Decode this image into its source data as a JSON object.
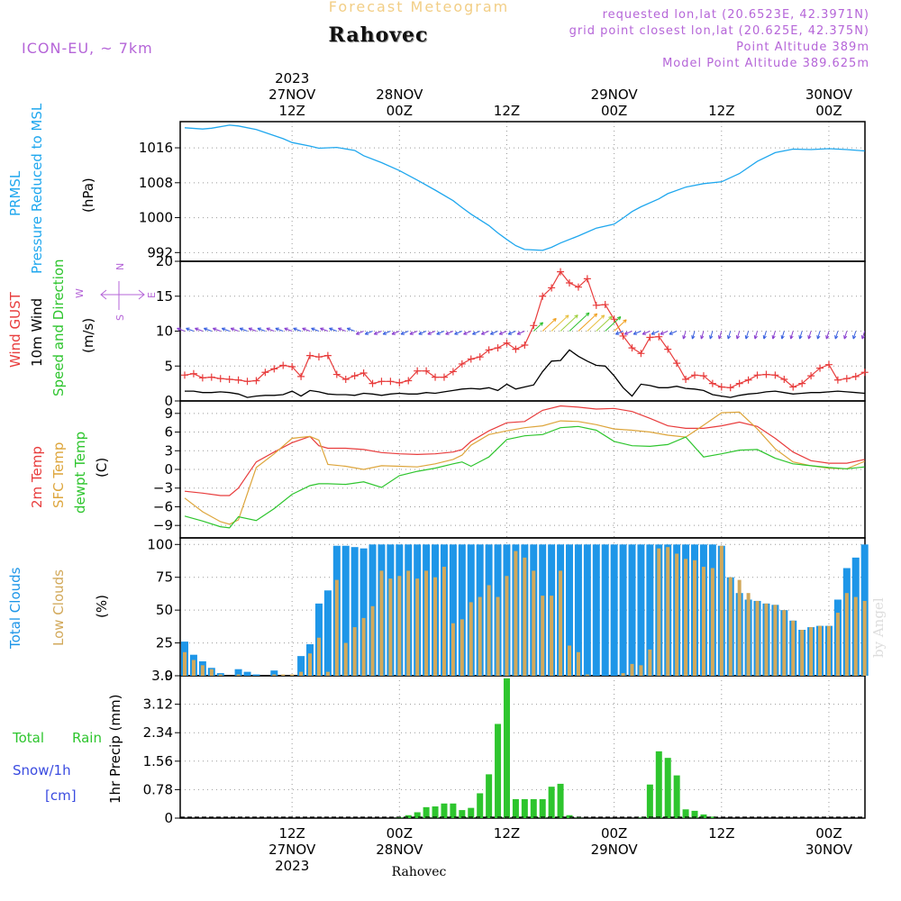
{
  "header": {
    "forecast_title": "Forecast Meteogram",
    "location_title": "Rahovec",
    "model": "ICON-EU, ~ 7km",
    "requested": "requested lon,lat (20.6523E, 42.3971N)",
    "grid_point": "grid point closest lon,lat (20.625E, 42.375N)",
    "point_altitude": "Point Altitude 389m",
    "model_altitude": "Model Point Altitude 389.625m",
    "bottom_label": "Rahovec",
    "credit": "by Angel"
  },
  "colors": {
    "pressure": "#1fa7ee",
    "gust": "#e83c3c",
    "wind": "#000000",
    "temp": "#e83c3c",
    "sfc_temp": "#dda53b",
    "dewpt": "#2ec52e",
    "total_clouds": "#1e96e8",
    "low_clouds": "#d2a95b",
    "rain": "#2ec52e",
    "snow_label": "#3a4be0",
    "compass": "#b565d8"
  },
  "time_axis": {
    "top_year": "2023",
    "ticks": [
      {
        "t": 12,
        "date": "27NOV",
        "hour": "12Z"
      },
      {
        "t": 24,
        "date": "28NOV",
        "hour": "00Z"
      },
      {
        "t": 36,
        "date": "",
        "hour": "12Z"
      },
      {
        "t": 48,
        "date": "29NOV",
        "hour": "00Z"
      },
      {
        "t": 60,
        "date": "",
        "hour": "12Z"
      },
      {
        "t": 72,
        "date": "30NOV",
        "hour": "00Z"
      }
    ],
    "bottom_year": "2023"
  },
  "chart_data": [
    {
      "type": "line",
      "title": "PRMSL Pressure Reduced to MSL",
      "ylabel": "(hPa)",
      "ylim": [
        990,
        1022
      ],
      "yticks": [
        992,
        1000,
        1008,
        1016
      ],
      "x": [
        0,
        2,
        3,
        5,
        6,
        8,
        11,
        12,
        14,
        15,
        17,
        19,
        20,
        22,
        24,
        26,
        28,
        30,
        31,
        32,
        34,
        35,
        36,
        37,
        38,
        40,
        41,
        42,
        44,
        46,
        48,
        49,
        50,
        51,
        53,
        54,
        56,
        58,
        60,
        62,
        64,
        66,
        68,
        70,
        72,
        74,
        76
      ],
      "series": [
        {
          "name": "PRMSL",
          "values": [
            1020.6,
            1020.3,
            1020.5,
            1021.2,
            1021.0,
            1020.2,
            1018.1,
            1017.2,
            1016.4,
            1015.9,
            1016.1,
            1015.4,
            1014.2,
            1012.6,
            1010.8,
            1008.6,
            1006.3,
            1003.9,
            1002.3,
            1000.8,
            998.2,
            996.5,
            995.0,
            993.6,
            992.7,
            992.5,
            993.2,
            994.2,
            995.8,
            997.6,
            998.5,
            999.9,
            1001.4,
            1002.5,
            1004.3,
            1005.5,
            1007.0,
            1007.8,
            1008.2,
            1010.1,
            1012.9,
            1014.9,
            1015.7,
            1015.6,
            1015.8,
            1015.6,
            1015.3
          ]
        }
      ]
    },
    {
      "type": "line",
      "title": "Wind GUST / 10m Wind Speed and Direction",
      "ylabel": "(m/s)",
      "ylim": [
        0,
        20
      ],
      "yticks": [
        0,
        5,
        10,
        15,
        20
      ],
      "compass": {
        "n": "N",
        "s": "S",
        "w": "W",
        "e": "E"
      },
      "x": [
        0,
        1,
        2,
        3,
        4,
        5,
        6,
        7,
        8,
        9,
        10,
        11,
        12,
        13,
        14,
        15,
        16,
        17,
        18,
        19,
        20,
        21,
        22,
        23,
        24,
        25,
        26,
        27,
        28,
        29,
        30,
        31,
        32,
        33,
        34,
        35,
        36,
        37,
        38,
        39,
        40,
        41,
        42,
        43,
        44,
        45,
        46,
        47,
        48,
        49,
        50,
        51,
        52,
        53,
        54,
        55,
        56,
        57,
        58,
        59,
        60,
        61,
        62,
        63,
        64,
        65,
        66,
        67,
        68,
        69,
        70,
        71,
        72,
        73,
        74,
        75,
        76
      ],
      "series": [
        {
          "name": "Wind GUST",
          "values": [
            3.7,
            3.9,
            3.3,
            3.4,
            3.2,
            3.1,
            3.0,
            2.8,
            2.9,
            4.1,
            4.6,
            5.1,
            4.9,
            3.5,
            6.5,
            6.3,
            6.5,
            3.8,
            3.1,
            3.6,
            4.0,
            2.5,
            2.8,
            2.8,
            2.6,
            2.9,
            4.3,
            4.3,
            3.4,
            3.4,
            4.2,
            5.3,
            6.0,
            6.3,
            7.3,
            7.6,
            8.3,
            7.4,
            8.0,
            10.8,
            15.0,
            16.2,
            18.5,
            16.9,
            16.3,
            17.5,
            13.7,
            13.8,
            11.7,
            9.3,
            7.6,
            6.8,
            9.1,
            9.2,
            7.4,
            5.4,
            3.1,
            3.7,
            3.6,
            2.5,
            2.0,
            1.9,
            2.5,
            3.0,
            3.7,
            3.8,
            3.7,
            3.1,
            2.0,
            2.5,
            3.6,
            4.7,
            5.2,
            3.0,
            3.2,
            3.5,
            4.1
          ]
        },
        {
          "name": "10m Wind",
          "values": [
            1.4,
            1.4,
            1.2,
            1.2,
            1.3,
            1.2,
            1.0,
            0.5,
            0.7,
            0.8,
            0.8,
            0.9,
            1.4,
            0.7,
            1.5,
            1.3,
            1.0,
            0.9,
            0.9,
            0.8,
            1.1,
            1.0,
            0.8,
            1.0,
            1.1,
            1.0,
            1.0,
            1.2,
            1.1,
            1.3,
            1.5,
            1.7,
            1.8,
            1.7,
            1.9,
            1.5,
            2.4,
            1.7,
            2.0,
            2.3,
            4.2,
            5.7,
            5.8,
            7.3,
            6.4,
            5.7,
            5.1,
            5.0,
            3.6,
            1.9,
            0.7,
            2.4,
            2.2,
            1.9,
            1.9,
            2.1,
            1.8,
            1.7,
            1.5,
            0.9,
            0.7,
            0.5,
            0.8,
            1.0,
            1.1,
            1.3,
            1.4,
            1.2,
            1.0,
            1.1,
            1.2,
            1.2,
            1.3,
            1.4,
            1.3,
            1.2,
            1.1
          ]
        }
      ]
    },
    {
      "type": "line",
      "title": "2m Temp / SFC Temp / dewpt Temp",
      "ylabel": "(C)",
      "ylim": [
        -11,
        11
      ],
      "yticks": [
        -9,
        -6,
        -3,
        0,
        3,
        6,
        9
      ],
      "x": [
        0,
        2,
        4,
        5,
        6,
        8,
        10,
        12,
        14,
        15,
        16,
        18,
        20,
        22,
        24,
        26,
        28,
        30,
        31,
        32,
        34,
        36,
        38,
        40,
        42,
        44,
        46,
        48,
        50,
        52,
        54,
        56,
        58,
        60,
        62,
        64,
        66,
        68,
        70,
        72,
        74,
        76
      ],
      "series": [
        {
          "name": "2m Temp",
          "values": [
            -3.5,
            -3.8,
            -4.2,
            -4.2,
            -3.0,
            1.2,
            2.8,
            4.3,
            5.3,
            3.8,
            3.4,
            3.4,
            3.2,
            2.7,
            2.5,
            2.4,
            2.5,
            2.8,
            3.2,
            4.5,
            6.2,
            7.5,
            7.7,
            9.5,
            10.2,
            10.0,
            9.7,
            9.8,
            9.3,
            8.2,
            7.0,
            6.6,
            6.6,
            7.0,
            7.6,
            6.9,
            5.0,
            2.8,
            1.4,
            1.0,
            1.0,
            1.6
          ]
        },
        {
          "name": "SFC Temp",
          "values": [
            -4.6,
            -6.8,
            -8.4,
            -8.8,
            -8.1,
            0.3,
            2.5,
            5.0,
            5.3,
            4.7,
            0.8,
            0.5,
            0.0,
            0.6,
            0.5,
            0.4,
            0.9,
            1.6,
            2.3,
            3.9,
            5.6,
            6.2,
            6.7,
            7.0,
            7.8,
            7.7,
            7.2,
            6.5,
            6.3,
            6.0,
            5.5,
            5.2,
            7.1,
            9.1,
            9.2,
            6.5,
            3.3,
            1.2,
            0.6,
            0.2,
            0.1,
            1.3
          ]
        },
        {
          "name": "dewpt Temp",
          "values": [
            -7.5,
            -8.3,
            -9.2,
            -9.4,
            -7.6,
            -8.2,
            -6.3,
            -4.0,
            -2.6,
            -2.3,
            -2.3,
            -2.4,
            -2.0,
            -2.9,
            -1.0,
            -0.3,
            0.2,
            0.9,
            1.2,
            0.5,
            2.0,
            4.8,
            5.4,
            5.6,
            6.7,
            6.9,
            6.3,
            4.5,
            3.8,
            3.7,
            4.0,
            5.2,
            2.0,
            2.5,
            3.1,
            3.2,
            1.8,
            0.9,
            0.6,
            0.3,
            0.1,
            0.4
          ]
        }
      ]
    },
    {
      "type": "bar",
      "title": "Total Clouds / Low Clouds",
      "ylabel": "(%)",
      "ylim": [
        0,
        105
      ],
      "yticks": [
        0,
        25,
        50,
        75,
        100
      ],
      "x": [
        0,
        1,
        2,
        3,
        4,
        5,
        6,
        7,
        8,
        9,
        10,
        11,
        12,
        13,
        14,
        15,
        16,
        17,
        18,
        19,
        20,
        21,
        22,
        23,
        24,
        25,
        26,
        27,
        28,
        29,
        30,
        31,
        32,
        33,
        34,
        35,
        36,
        37,
        38,
        39,
        40,
        41,
        42,
        43,
        44,
        45,
        46,
        47,
        48,
        49,
        50,
        51,
        52,
        53,
        54,
        55,
        56,
        57,
        58,
        59,
        60,
        61,
        62,
        63,
        64,
        65,
        66,
        67,
        68,
        69,
        70,
        71,
        72,
        73,
        74,
        75,
        76
      ],
      "series": [
        {
          "name": "Total Clouds",
          "values": [
            26,
            16,
            11,
            6,
            2,
            0,
            5,
            3,
            1,
            0,
            4,
            0,
            0,
            15,
            24,
            55,
            65,
            99,
            99,
            98,
            97,
            100,
            100,
            100,
            100,
            100,
            100,
            100,
            100,
            100,
            100,
            100,
            100,
            100,
            100,
            100,
            100,
            100,
            100,
            100,
            100,
            100,
            100,
            100,
            100,
            100,
            100,
            100,
            100,
            100,
            100,
            100,
            100,
            100,
            100,
            100,
            100,
            100,
            100,
            100,
            99,
            75,
            63,
            58,
            57,
            55,
            54,
            50,
            42,
            35,
            37,
            38,
            38,
            58,
            82,
            90,
            100
          ]
        },
        {
          "name": "Low Clouds",
          "values": [
            18,
            12,
            8,
            5,
            1,
            0,
            1,
            0,
            0,
            0,
            1,
            1,
            1,
            3,
            17,
            29,
            3,
            73,
            25,
            37,
            44,
            53,
            80,
            74,
            76,
            80,
            74,
            80,
            75,
            83,
            40,
            43,
            56,
            60,
            69,
            60,
            76,
            95,
            90,
            80,
            61,
            61,
            80,
            23,
            18,
            1,
            0,
            0,
            0,
            2,
            9,
            8,
            20,
            97,
            98,
            93,
            89,
            88,
            83,
            82,
            99,
            75,
            73,
            63,
            57,
            55,
            54,
            50,
            42,
            35,
            37,
            38,
            38,
            48,
            63,
            60,
            57
          ]
        }
      ]
    },
    {
      "type": "bar",
      "title": "Total Rain / Snow/1h [cm]",
      "ylabel": "1hr Precip (mm)",
      "ylim": [
        0,
        3.9
      ],
      "yticks": [
        0,
        0.78,
        1.56,
        2.34,
        3.12,
        3.9
      ],
      "legend": {
        "rain": "Total Rain",
        "snow": "Snow/1h",
        "snow_unit": "[cm]"
      },
      "x": [
        0,
        1,
        2,
        3,
        4,
        5,
        6,
        7,
        8,
        9,
        10,
        11,
        12,
        13,
        14,
        15,
        16,
        17,
        18,
        19,
        20,
        21,
        22,
        23,
        24,
        25,
        26,
        27,
        28,
        29,
        30,
        31,
        32,
        33,
        34,
        35,
        36,
        37,
        38,
        39,
        40,
        41,
        42,
        43,
        44,
        45,
        46,
        47,
        48,
        49,
        50,
        51,
        52,
        53,
        54,
        55,
        56,
        57,
        58,
        59,
        60,
        61,
        62,
        63,
        64,
        65,
        66,
        67,
        68,
        69,
        70,
        71,
        72,
        73,
        74,
        75,
        76
      ],
      "series": [
        {
          "name": "Total Rain",
          "values": [
            0,
            0,
            0,
            0,
            0,
            0,
            0,
            0,
            0,
            0,
            0,
            0,
            0,
            0,
            0,
            0,
            0,
            0,
            0,
            0,
            0,
            0,
            0,
            0,
            0.02,
            0.08,
            0.16,
            0.3,
            0.32,
            0.4,
            0.4,
            0.22,
            0.28,
            0.68,
            1.2,
            2.58,
            3.83,
            0.52,
            0.52,
            0.52,
            0.52,
            0.86,
            0.94,
            0.08,
            0.01,
            0,
            0,
            0,
            0,
            0,
            0,
            0.01,
            0.92,
            1.83,
            1.65,
            1.17,
            0.24,
            0.2,
            0.1,
            0.04,
            0,
            0,
            0,
            0,
            0,
            0,
            0,
            0,
            0,
            0,
            0,
            0,
            0,
            0,
            0,
            0,
            0
          ]
        }
      ]
    }
  ]
}
